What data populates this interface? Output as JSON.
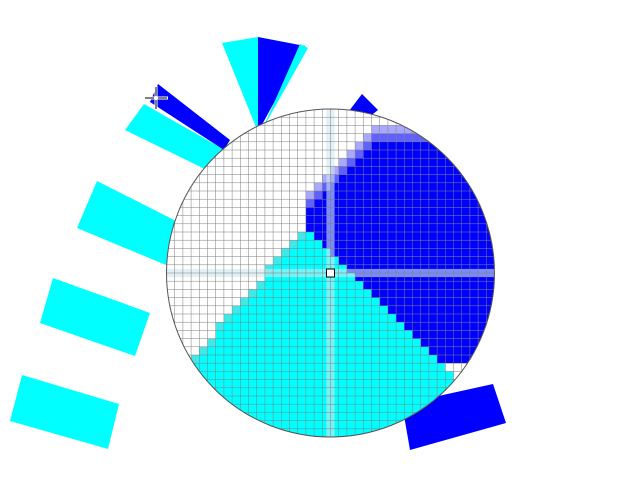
{
  "canvas": {
    "background": "#ffffff"
  },
  "colors": {
    "cyan": "#00ffff",
    "blue": "#0000ff",
    "grid_line": "#7f7f7f",
    "circle_outline": "#555555",
    "axis_band": "#cfe8ee",
    "blend_light": "#a8a8ff",
    "blend_mid": "#6060ff",
    "blend_teal": "#40e8e8"
  },
  "magnifier": {
    "icon": "magnifier-loupe",
    "center_marker_icon": "square-marker-icon"
  },
  "cursor": {
    "icon": "crosshair-cursor-icon"
  }
}
